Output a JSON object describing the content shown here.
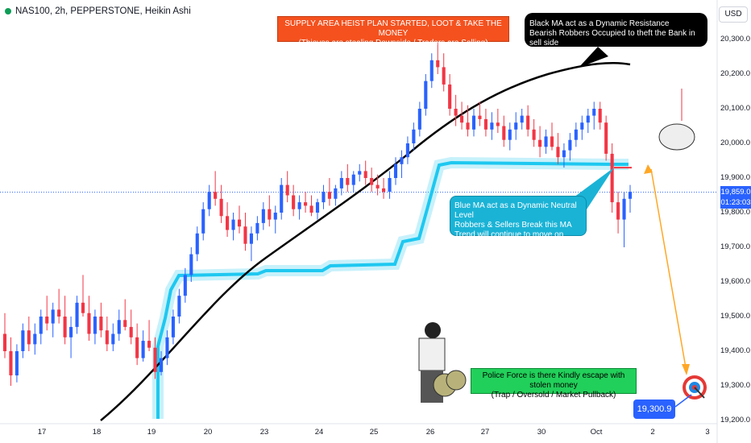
{
  "header": {
    "symbol": "NAS100, 2h, PEPPERSTONE, Heikin Ashi"
  },
  "currency": "USD",
  "annotations": {
    "supply": [
      "SUPPLY AREA HEIST PLAN STARTED, LOOT & TAKE THE MONEY",
      "(Thieves are stealing Downside / Traders are Selling)"
    ],
    "black_ma": [
      "Black MA act as a Dynamic Resistance",
      "Bearish Robbers Occupied to theft the Bank in sell side"
    ],
    "blue_ma": [
      "Blue MA act as a Dynamic Neutral Level",
      "Robbers & Sellers Break this MA",
      "Trend will continue to move on Bearish"
    ],
    "police": [
      "Police Force is there Kindly escape with stolen money",
      "(Trap / Oversold / Market Pullback)"
    ]
  },
  "price_label": {
    "price": "19,859.0",
    "countdown": "01:23:03"
  },
  "target_label": "19,300.9",
  "colors": {
    "up": "#2962ff",
    "down": "#f23645",
    "black_ma": "#000000",
    "blue_ma": "#1ec8f0",
    "supply": "#f4511e",
    "police": "#21d05a",
    "arrow": "#ffa726"
  },
  "chart_data": {
    "type": "candlestick",
    "style": "Heikin Ashi",
    "y_axis": {
      "ticks": [
        "20,300.0",
        "20,200.0",
        "20,100.0",
        "20,000.0",
        "19,900.0",
        "19,800.0",
        "19,700.0",
        "19,600.0",
        "19,500.0",
        "19,400.0",
        "19,300.0",
        "19,200.0"
      ],
      "min": 19200,
      "max": 20300
    },
    "x_axis": {
      "ticks": [
        "17",
        "18",
        "19",
        "20",
        "23",
        "24",
        "25",
        "26",
        "27",
        "30",
        "Oct",
        "2",
        "3"
      ]
    },
    "current_price": 19859.0,
    "target": 19300.9,
    "ohlc": [
      [
        19450,
        19510,
        19380,
        19400
      ],
      [
        19400,
        19440,
        19300,
        19330
      ],
      [
        19330,
        19420,
        19310,
        19400
      ],
      [
        19400,
        19480,
        19380,
        19460
      ],
      [
        19460,
        19500,
        19400,
        19420
      ],
      [
        19420,
        19480,
        19390,
        19450
      ],
      [
        19450,
        19520,
        19420,
        19500
      ],
      [
        19500,
        19560,
        19460,
        19480
      ],
      [
        19480,
        19540,
        19440,
        19520
      ],
      [
        19520,
        19580,
        19480,
        19500
      ],
      [
        19500,
        19560,
        19420,
        19440
      ],
      [
        19440,
        19500,
        19380,
        19470
      ],
      [
        19470,
        19560,
        19450,
        19540
      ],
      [
        19540,
        19620,
        19500,
        19510
      ],
      [
        19510,
        19560,
        19430,
        19450
      ],
      [
        19450,
        19520,
        19420,
        19500
      ],
      [
        19500,
        19540,
        19440,
        19460
      ],
      [
        19460,
        19500,
        19400,
        19420
      ],
      [
        19420,
        19480,
        19400,
        19450
      ],
      [
        19450,
        19520,
        19430,
        19490
      ],
      [
        19490,
        19550,
        19460,
        19470
      ],
      [
        19470,
        19520,
        19420,
        19440
      ],
      [
        19440,
        19480,
        19360,
        19380
      ],
      [
        19380,
        19460,
        19370,
        19430
      ],
      [
        19430,
        19490,
        19400,
        19410
      ],
      [
        19410,
        19440,
        19320,
        19340
      ],
      [
        19340,
        19400,
        19330,
        19380
      ],
      [
        19380,
        19460,
        19360,
        19440
      ],
      [
        19440,
        19520,
        19420,
        19500
      ],
      [
        19500,
        19580,
        19480,
        19560
      ],
      [
        19560,
        19640,
        19540,
        19620
      ],
      [
        19620,
        19700,
        19600,
        19680
      ],
      [
        19680,
        19760,
        19660,
        19740
      ],
      [
        19740,
        19830,
        19720,
        19810
      ],
      [
        19810,
        19880,
        19790,
        19860
      ],
      [
        19860,
        19920,
        19820,
        19840
      ],
      [
        19840,
        19880,
        19770,
        19790
      ],
      [
        19790,
        19830,
        19730,
        19750
      ],
      [
        19750,
        19800,
        19720,
        19780
      ],
      [
        19780,
        19820,
        19740,
        19760
      ],
      [
        19760,
        19800,
        19690,
        19710
      ],
      [
        19710,
        19760,
        19660,
        19740
      ],
      [
        19740,
        19790,
        19720,
        19770
      ],
      [
        19770,
        19830,
        19750,
        19810
      ],
      [
        19810,
        19850,
        19760,
        19780
      ],
      [
        19780,
        19820,
        19740,
        19800
      ],
      [
        19800,
        19900,
        19780,
        19880
      ],
      [
        19880,
        19920,
        19830,
        19850
      ],
      [
        19850,
        19880,
        19790,
        19810
      ],
      [
        19810,
        19850,
        19780,
        19830
      ],
      [
        19830,
        19860,
        19800,
        19820
      ],
      [
        19820,
        19850,
        19790,
        19800
      ],
      [
        19800,
        19840,
        19780,
        19830
      ],
      [
        19830,
        19880,
        19810,
        19860
      ],
      [
        19860,
        19900,
        19820,
        19840
      ],
      [
        19840,
        19880,
        19820,
        19870
      ],
      [
        19870,
        19920,
        19850,
        19900
      ],
      [
        19900,
        19940,
        19860,
        19880
      ],
      [
        19880,
        19920,
        19860,
        19910
      ],
      [
        19910,
        19940,
        19890,
        19920
      ],
      [
        19920,
        19950,
        19880,
        19900
      ],
      [
        19900,
        19930,
        19860,
        19880
      ],
      [
        19880,
        19910,
        19850,
        19870
      ],
      [
        19870,
        19900,
        19840,
        19860
      ],
      [
        19860,
        19920,
        19840,
        19900
      ],
      [
        19900,
        19960,
        19880,
        19940
      ],
      [
        19940,
        19980,
        19900,
        19960
      ],
      [
        19960,
        20020,
        19940,
        20000
      ],
      [
        20000,
        20060,
        19980,
        20040
      ],
      [
        20040,
        20120,
        20020,
        20100
      ],
      [
        20100,
        20200,
        20080,
        20180
      ],
      [
        20180,
        20260,
        20160,
        20240
      ],
      [
        20240,
        20300,
        20200,
        20220
      ],
      [
        20220,
        20260,
        20150,
        20170
      ],
      [
        20170,
        20200,
        20080,
        20100
      ],
      [
        20100,
        20140,
        20050,
        20080
      ],
      [
        20080,
        20120,
        20040,
        20060
      ],
      [
        20060,
        20110,
        20020,
        20040
      ],
      [
        20040,
        20100,
        20020,
        20080
      ],
      [
        20080,
        20120,
        20050,
        20070
      ],
      [
        20070,
        20100,
        20020,
        20040
      ],
      [
        20040,
        20090,
        20010,
        20060
      ],
      [
        20060,
        20100,
        20030,
        20050
      ],
      [
        20050,
        20080,
        19990,
        20010
      ],
      [
        20010,
        20060,
        19980,
        20040
      ],
      [
        20040,
        20090,
        20010,
        20060
      ],
      [
        20060,
        20100,
        20040,
        20080
      ],
      [
        20080,
        20110,
        20020,
        20040
      ],
      [
        20040,
        20070,
        19990,
        20010
      ],
      [
        20010,
        20050,
        19960,
        19990
      ],
      [
        19990,
        20040,
        19970,
        20020
      ],
      [
        20020,
        20060,
        19980,
        19990
      ],
      [
        19990,
        20030,
        19940,
        19960
      ],
      [
        19960,
        20000,
        19930,
        19980
      ],
      [
        19980,
        20030,
        19950,
        20010
      ],
      [
        20010,
        20060,
        19990,
        20040
      ],
      [
        20040,
        20080,
        20010,
        20060
      ],
      [
        20060,
        20100,
        20030,
        20080
      ],
      [
        20080,
        20120,
        20040,
        20100
      ],
      [
        20100,
        20120,
        20040,
        20060
      ],
      [
        20060,
        20080,
        19950,
        19970
      ],
      [
        19970,
        20000,
        19800,
        19830
      ],
      [
        19830,
        19860,
        19740,
        19780
      ],
      [
        19780,
        19860,
        19700,
        19840
      ],
      [
        19840,
        19880,
        19800,
        19860
      ]
    ]
  }
}
